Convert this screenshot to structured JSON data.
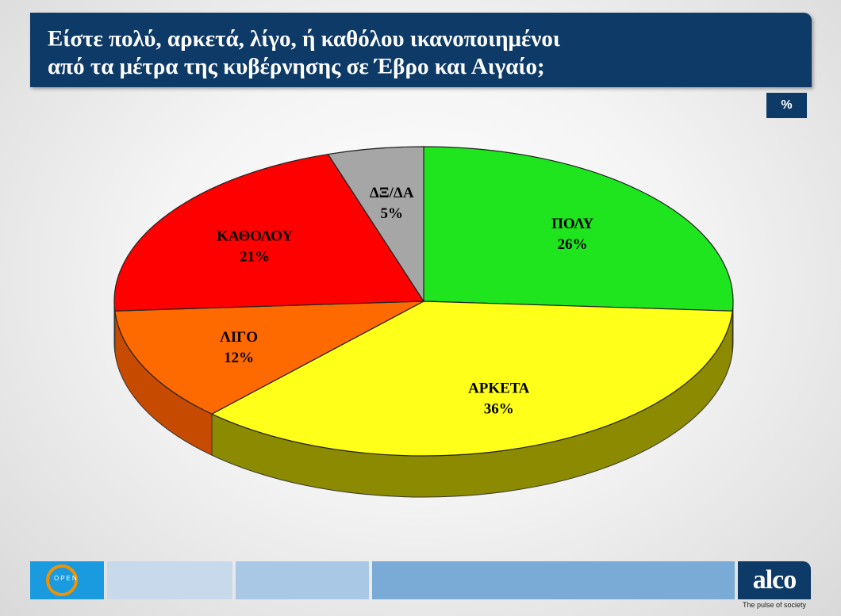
{
  "title": {
    "line1": "Είστε πολύ, αρκετά, λίγο, ή καθόλου ικανοποιημένοι",
    "line2": "από τα μέτρα της κυβέρνησης σε Έβρο και Αιγαίο;"
  },
  "unit_label": "%",
  "chart_data": {
    "type": "pie",
    "title": "Είστε πολύ, αρκετά, λίγο, ή καθόλου ικανοποιημένοι από τα μέτρα της κυβέρνησης σε Έβρο και Αιγαίο;",
    "slices": [
      {
        "label": "ΠΟΛΥ",
        "value": 26,
        "value_label": "26%",
        "color": "#1ee51e",
        "side": "#0f7a0f"
      },
      {
        "label": "ΑΡΚΕΤΑ",
        "value": 36,
        "value_label": "36%",
        "color": "#ffff1a",
        "side": "#8c8a00"
      },
      {
        "label": "ΛΙΓΟ",
        "value": 12,
        "value_label": "12%",
        "color": "#ff6a00",
        "side": "#c64b00"
      },
      {
        "label": "ΚΑΘΟΛΟΥ",
        "value": 21,
        "value_label": "21%",
        "color": "#ff0000",
        "side": "#a00000"
      },
      {
        "label": "ΔΞ/ΔΑ",
        "value": 5,
        "value_label": "5%",
        "color": "#a6a6a6",
        "side": "#6b6b6b"
      }
    ]
  },
  "footer": {
    "open_logo_text": "OPEN",
    "alco_logo_text": "alco",
    "tagline": "The pulse of society",
    "bar_colors": [
      "#c8d9ec",
      "#a9c8e6",
      "#7aaad6"
    ]
  }
}
